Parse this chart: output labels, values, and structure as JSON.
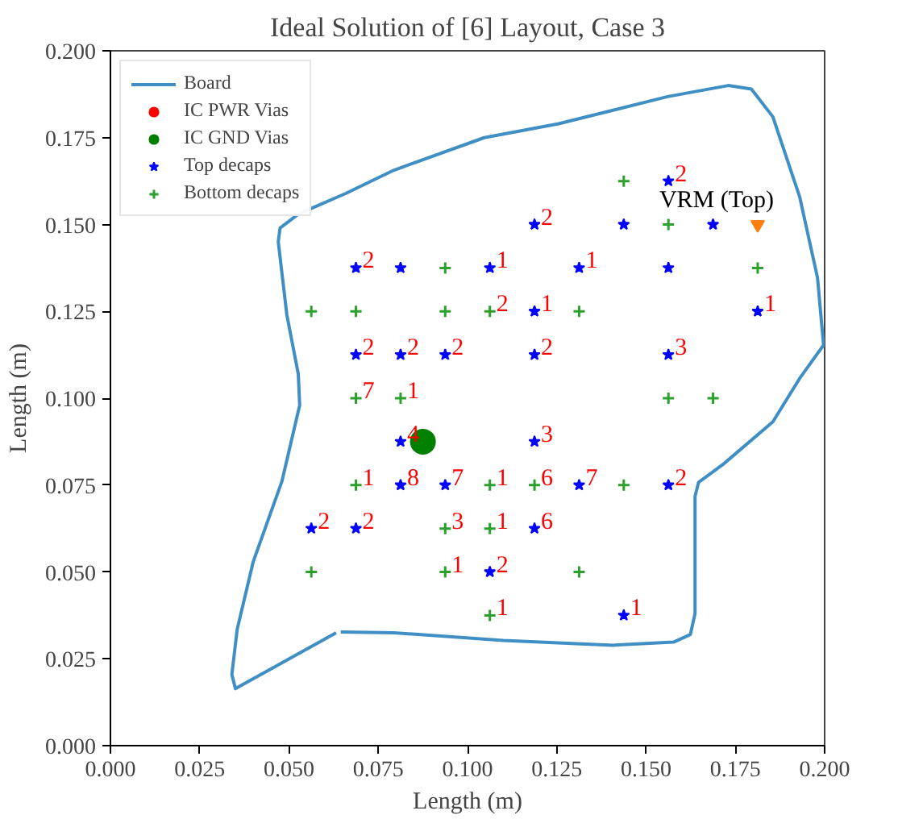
{
  "chart_data": {
    "type": "scatter",
    "title": "Ideal Solution of [6] Layout, Case 3",
    "xlabel": "Length (m)",
    "ylabel": "Length (m)",
    "xlim": [
      0.0,
      0.2
    ],
    "ylim": [
      0.0,
      0.2
    ],
    "xticks": [
      {
        "value": 0.0,
        "label": "0.000"
      },
      {
        "value": 0.025,
        "label": "0.025"
      },
      {
        "value": 0.05,
        "label": "0.050"
      },
      {
        "value": 0.075,
        "label": "0.075"
      },
      {
        "value": 0.1,
        "label": "0.100"
      },
      {
        "value": 0.125,
        "label": "0.125"
      },
      {
        "value": 0.15,
        "label": "0.150"
      },
      {
        "value": 0.175,
        "label": "0.175"
      },
      {
        "value": 0.2,
        "label": "0.200"
      }
    ],
    "yticks": [
      {
        "value": 0.0,
        "label": "0.000"
      },
      {
        "value": 0.025,
        "label": "0.025"
      },
      {
        "value": 0.05,
        "label": "0.050"
      },
      {
        "value": 0.075,
        "label": "0.075"
      },
      {
        "value": 0.1,
        "label": "0.100"
      },
      {
        "value": 0.125,
        "label": "0.125"
      },
      {
        "value": 0.15,
        "label": "0.150"
      },
      {
        "value": 0.175,
        "label": "0.175"
      },
      {
        "value": 0.2,
        "label": "0.200"
      }
    ],
    "grid": false,
    "legend": "top left",
    "annotations": [
      {
        "text": "VRM (Top)",
        "x": 0.18125,
        "y": 0.15
      },
      {
        "text": "2",
        "x": 0.15625,
        "y": 0.1625
      },
      {
        "text": "2",
        "x": 0.11875,
        "y": 0.15
      },
      {
        "text": "2",
        "x": 0.06875,
        "y": 0.1375
      },
      {
        "text": "1",
        "x": 0.10625,
        "y": 0.1375
      },
      {
        "text": "1",
        "x": 0.13125,
        "y": 0.1375
      },
      {
        "text": "1",
        "x": 0.11875,
        "y": 0.125
      },
      {
        "text": "1",
        "x": 0.18125,
        "y": 0.125
      },
      {
        "text": "2",
        "x": 0.10625,
        "y": 0.125
      },
      {
        "text": "2",
        "x": 0.06875,
        "y": 0.1125
      },
      {
        "text": "2",
        "x": 0.08125,
        "y": 0.1125
      },
      {
        "text": "2",
        "x": 0.09375,
        "y": 0.1125
      },
      {
        "text": "2",
        "x": 0.11875,
        "y": 0.1125
      },
      {
        "text": "3",
        "x": 0.15625,
        "y": 0.1125
      },
      {
        "text": "7",
        "x": 0.06875,
        "y": 0.1
      },
      {
        "text": "1",
        "x": 0.08125,
        "y": 0.1
      },
      {
        "text": "4",
        "x": 0.08125,
        "y": 0.0875
      },
      {
        "text": "3",
        "x": 0.11875,
        "y": 0.0875
      },
      {
        "text": "1",
        "x": 0.06875,
        "y": 0.075
      },
      {
        "text": "8",
        "x": 0.08125,
        "y": 0.075
      },
      {
        "text": "7",
        "x": 0.09375,
        "y": 0.075
      },
      {
        "text": "1",
        "x": 0.10625,
        "y": 0.075
      },
      {
        "text": "6",
        "x": 0.11875,
        "y": 0.075
      },
      {
        "text": "7",
        "x": 0.13125,
        "y": 0.075
      },
      {
        "text": "2",
        "x": 0.15625,
        "y": 0.075
      },
      {
        "text": "2",
        "x": 0.05625,
        "y": 0.0625
      },
      {
        "text": "2",
        "x": 0.06875,
        "y": 0.0625
      },
      {
        "text": "3",
        "x": 0.09375,
        "y": 0.0625
      },
      {
        "text": "1",
        "x": 0.10625,
        "y": 0.0625
      },
      {
        "text": "6",
        "x": 0.11875,
        "y": 0.0625
      },
      {
        "text": "1",
        "x": 0.09375,
        "y": 0.05
      },
      {
        "text": "2",
        "x": 0.10625,
        "y": 0.05
      },
      {
        "text": "1",
        "x": 0.10625,
        "y": 0.0375
      },
      {
        "text": "1",
        "x": 0.14375,
        "y": 0.0375
      }
    ],
    "series": [
      {
        "name": "Board",
        "type": "line",
        "marker": "none",
        "line_style": "solid",
        "color": "#3f8fc5",
        "x": [
          0.0632,
          0.035,
          0.034,
          0.0355,
          0.04,
          0.048,
          0.053,
          0.0526,
          0.0494,
          0.047,
          0.0475,
          0.0526,
          0.066,
          0.0793,
          0.1047,
          0.1255,
          0.156,
          0.173,
          0.1795,
          0.1855,
          0.193,
          0.198,
          0.1997,
          0.193,
          0.1855,
          0.1716,
          0.1647,
          0.1637,
          0.1637,
          0.1624,
          0.1577,
          0.1407,
          0.11,
          0.0793,
          0.0645
        ],
        "values": [
          0.0325,
          0.0164,
          0.0205,
          0.0335,
          0.053,
          0.076,
          0.098,
          0.107,
          0.124,
          0.145,
          0.149,
          0.153,
          0.159,
          0.1656,
          0.175,
          0.179,
          0.1868,
          0.19,
          0.189,
          0.181,
          0.158,
          0.1347,
          0.1153,
          0.1057,
          0.0932,
          0.081,
          0.0758,
          0.0717,
          0.038,
          0.032,
          0.0298,
          0.0289,
          0.0303,
          0.0325,
          0.0327
        ]
      },
      {
        "name": "IC PWR Vias",
        "marker": "circle",
        "color": "#ff0000"
      },
      {
        "name": "IC GND Vias",
        "marker": "circle",
        "color": "#008000",
        "x": [
          0.0875
        ],
        "values": [
          0.0875
        ]
      },
      {
        "name": "Top decaps",
        "marker": "star",
        "color": "#0000ff",
        "x": [
          0.15625,
          0.11875,
          0.14375,
          0.16875,
          0.06875,
          0.08125,
          0.10625,
          0.13125,
          0.15625,
          0.11875,
          0.18125,
          0.06875,
          0.08125,
          0.09375,
          0.11875,
          0.15625,
          0.08125,
          0.11875,
          0.08125,
          0.09375,
          0.13125,
          0.15625,
          0.05625,
          0.06875,
          0.11875,
          0.10625,
          0.14375
        ],
        "values": [
          0.1625,
          0.15,
          0.15,
          0.15,
          0.1375,
          0.1375,
          0.1375,
          0.1375,
          0.1375,
          0.125,
          0.125,
          0.1125,
          0.1125,
          0.1125,
          0.1125,
          0.1125,
          0.0875,
          0.0875,
          0.075,
          0.075,
          0.075,
          0.075,
          0.0625,
          0.0625,
          0.0625,
          0.05,
          0.0375
        ]
      },
      {
        "name": "Bottom decaps",
        "marker": "cross",
        "color": "#2ca02c",
        "x": [
          0.14375,
          0.15625,
          0.09375,
          0.18125,
          0.05625,
          0.06875,
          0.09375,
          0.10625,
          0.13125,
          0.06875,
          0.08125,
          0.15625,
          0.16875,
          0.06875,
          0.10625,
          0.11875,
          0.14375,
          0.09375,
          0.10625,
          0.05625,
          0.09375,
          0.13125,
          0.10625
        ],
        "values": [
          0.1625,
          0.15,
          0.1375,
          0.1375,
          0.125,
          0.125,
          0.125,
          0.125,
          0.125,
          0.1,
          0.1,
          0.1,
          0.1,
          0.075,
          0.075,
          0.075,
          0.075,
          0.0625,
          0.0625,
          0.05,
          0.05,
          0.05,
          0.0375
        ]
      },
      {
        "marker": "triangle",
        "color": "#ff7f0e",
        "x": [
          0.18125
        ],
        "values": [
          0.15
        ]
      }
    ]
  }
}
